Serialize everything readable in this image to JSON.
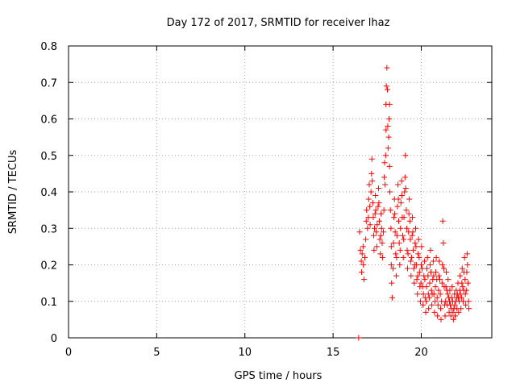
{
  "chart_data": {
    "type": "scatter",
    "title": "Day 172 of 2017, SRMTID for receiver lhaz",
    "xlabel": "GPS time / hours",
    "ylabel": "SRMTID / TECUs",
    "xlim": [
      0,
      24
    ],
    "ylim": [
      0,
      0.8
    ],
    "xticks": [
      0,
      5,
      10,
      15,
      20
    ],
    "yticks": [
      0,
      0.1,
      0.2,
      0.3,
      0.4,
      0.5,
      0.6,
      0.7,
      0.8
    ],
    "xtick_labels": [
      "0",
      "5",
      "10",
      "15",
      "20"
    ],
    "ytick_labels": [
      "0",
      "0.1",
      "0.2",
      "0.3",
      "0.4",
      "0.5",
      "0.6",
      "0.7",
      "0.8"
    ],
    "grid": true,
    "marker": "plus",
    "color": "#ff0000",
    "series": [
      {
        "name": "SRMTID",
        "points": [
          [
            16.45,
            0.0
          ],
          [
            16.5,
            0.29
          ],
          [
            16.55,
            0.24
          ],
          [
            16.6,
            0.21
          ],
          [
            16.62,
            0.18
          ],
          [
            16.65,
            0.23
          ],
          [
            16.7,
            0.25
          ],
          [
            16.72,
            0.2
          ],
          [
            16.75,
            0.16
          ],
          [
            16.8,
            0.22
          ],
          [
            16.85,
            0.27
          ],
          [
            16.88,
            0.32
          ],
          [
            16.9,
            0.35
          ],
          [
            16.95,
            0.3
          ],
          [
            17.0,
            0.33
          ],
          [
            17.02,
            0.38
          ],
          [
            17.05,
            0.42
          ],
          [
            17.08,
            0.36
          ],
          [
            17.1,
            0.31
          ],
          [
            17.15,
            0.4
          ],
          [
            17.18,
            0.45
          ],
          [
            17.2,
            0.49
          ],
          [
            17.22,
            0.43
          ],
          [
            17.25,
            0.37
          ],
          [
            17.28,
            0.33
          ],
          [
            17.3,
            0.28
          ],
          [
            17.32,
            0.24
          ],
          [
            17.35,
            0.3
          ],
          [
            17.38,
            0.34
          ],
          [
            17.4,
            0.39
          ],
          [
            17.42,
            0.35
          ],
          [
            17.45,
            0.29
          ],
          [
            17.48,
            0.25
          ],
          [
            17.5,
            0.31
          ],
          [
            17.55,
            0.36
          ],
          [
            17.58,
            0.41
          ],
          [
            17.6,
            0.37
          ],
          [
            17.62,
            0.32
          ],
          [
            17.65,
            0.27
          ],
          [
            17.68,
            0.23
          ],
          [
            17.7,
            0.28
          ],
          [
            17.72,
            0.34
          ],
          [
            17.75,
            0.3
          ],
          [
            17.78,
            0.26
          ],
          [
            17.8,
            0.22
          ],
          [
            17.85,
            0.29
          ],
          [
            17.88,
            0.35
          ],
          [
            17.9,
            0.44
          ],
          [
            17.92,
            0.48
          ],
          [
            17.95,
            0.42
          ],
          [
            17.98,
            0.5
          ],
          [
            18.0,
            0.57
          ],
          [
            18.0,
            0.64
          ],
          [
            18.02,
            0.69
          ],
          [
            18.05,
            0.74
          ],
          [
            18.08,
            0.68
          ],
          [
            18.1,
            0.58
          ],
          [
            18.12,
            0.52
          ],
          [
            18.15,
            0.55
          ],
          [
            18.18,
            0.6
          ],
          [
            18.2,
            0.64
          ],
          [
            18.2,
            0.47
          ],
          [
            18.22,
            0.4
          ],
          [
            18.25,
            0.35
          ],
          [
            18.28,
            0.3
          ],
          [
            18.3,
            0.25
          ],
          [
            18.3,
            0.2
          ],
          [
            18.32,
            0.15
          ],
          [
            18.35,
            0.11
          ],
          [
            18.4,
            0.19
          ],
          [
            18.42,
            0.26
          ],
          [
            18.45,
            0.33
          ],
          [
            18.48,
            0.38
          ],
          [
            18.5,
            0.34
          ],
          [
            18.52,
            0.29
          ],
          [
            18.55,
            0.23
          ],
          [
            18.58,
            0.17
          ],
          [
            18.6,
            0.22
          ],
          [
            18.62,
            0.28
          ],
          [
            18.65,
            0.36
          ],
          [
            18.68,
            0.42
          ],
          [
            18.7,
            0.38
          ],
          [
            18.72,
            0.32
          ],
          [
            18.75,
            0.26
          ],
          [
            18.78,
            0.2
          ],
          [
            18.8,
            0.24
          ],
          [
            18.82,
            0.3
          ],
          [
            18.85,
            0.37
          ],
          [
            18.88,
            0.43
          ],
          [
            18.9,
            0.39
          ],
          [
            18.92,
            0.33
          ],
          [
            18.95,
            0.28
          ],
          [
            18.98,
            0.22
          ],
          [
            19.0,
            0.27
          ],
          [
            19.02,
            0.33
          ],
          [
            19.05,
            0.4
          ],
          [
            19.08,
            0.44
          ],
          [
            19.1,
            0.5
          ],
          [
            19.12,
            0.41
          ],
          [
            19.15,
            0.35
          ],
          [
            19.18,
            0.3
          ],
          [
            19.2,
            0.24
          ],
          [
            19.22,
            0.19
          ],
          [
            19.25,
            0.23
          ],
          [
            19.28,
            0.29
          ],
          [
            19.3,
            0.34
          ],
          [
            19.32,
            0.38
          ],
          [
            19.35,
            0.32
          ],
          [
            19.38,
            0.27
          ],
          [
            19.4,
            0.21
          ],
          [
            19.42,
            0.17
          ],
          [
            19.45,
            0.22
          ],
          [
            19.48,
            0.28
          ],
          [
            19.5,
            0.33
          ],
          [
            19.52,
            0.29
          ],
          [
            19.55,
            0.24
          ],
          [
            19.58,
            0.19
          ],
          [
            19.6,
            0.15
          ],
          [
            19.62,
            0.2
          ],
          [
            19.65,
            0.26
          ],
          [
            19.68,
            0.3
          ],
          [
            19.7,
            0.25
          ],
          [
            19.72,
            0.2
          ],
          [
            19.75,
            0.16
          ],
          [
            19.78,
            0.12
          ],
          [
            19.8,
            0.17
          ],
          [
            19.82,
            0.23
          ],
          [
            19.85,
            0.27
          ],
          [
            19.88,
            0.22
          ],
          [
            19.9,
            0.18
          ],
          [
            19.92,
            0.14
          ],
          [
            19.95,
            0.1
          ],
          [
            19.98,
            0.15
          ],
          [
            20.0,
            0.2
          ],
          [
            20.02,
            0.25
          ],
          [
            20.05,
            0.19
          ],
          [
            20.08,
            0.14
          ],
          [
            20.1,
            0.09
          ],
          [
            20.12,
            0.12
          ],
          [
            20.15,
            0.17
          ],
          [
            20.18,
            0.21
          ],
          [
            20.2,
            0.16
          ],
          [
            20.22,
            0.11
          ],
          [
            20.25,
            0.07
          ],
          [
            20.28,
            0.1
          ],
          [
            20.3,
            0.14
          ],
          [
            20.32,
            0.19
          ],
          [
            20.35,
            0.22
          ],
          [
            20.38,
            0.17
          ],
          [
            20.4,
            0.12
          ],
          [
            20.42,
            0.08
          ],
          [
            20.45,
            0.11
          ],
          [
            20.48,
            0.15
          ],
          [
            20.5,
            0.2
          ],
          [
            20.52,
            0.24
          ],
          [
            20.55,
            0.18
          ],
          [
            20.58,
            0.13
          ],
          [
            20.6,
            0.09
          ],
          [
            20.62,
            0.12
          ],
          [
            20.65,
            0.16
          ],
          [
            20.68,
            0.21
          ],
          [
            20.7,
            0.17
          ],
          [
            20.72,
            0.12
          ],
          [
            20.75,
            0.07
          ],
          [
            20.78,
            0.1
          ],
          [
            20.8,
            0.14
          ],
          [
            20.82,
            0.18
          ],
          [
            20.85,
            0.22
          ],
          [
            20.88,
            0.16
          ],
          [
            20.9,
            0.11
          ],
          [
            20.92,
            0.06
          ],
          [
            20.95,
            0.09
          ],
          [
            20.98,
            0.13
          ],
          [
            21.0,
            0.17
          ],
          [
            21.02,
            0.21
          ],
          [
            21.05,
            0.16
          ],
          [
            21.08,
            0.12
          ],
          [
            21.1,
            0.08
          ],
          [
            21.12,
            0.05
          ],
          [
            21.15,
            0.1
          ],
          [
            21.18,
            0.15
          ],
          [
            21.2,
            0.2
          ],
          [
            21.22,
            0.32
          ],
          [
            21.25,
            0.26
          ],
          [
            21.28,
            0.19
          ],
          [
            21.3,
            0.14
          ],
          [
            21.32,
            0.09
          ],
          [
            21.35,
            0.06
          ],
          [
            21.38,
            0.1
          ],
          [
            21.4,
            0.14
          ],
          [
            21.42,
            0.18
          ],
          [
            21.45,
            0.13
          ],
          [
            21.48,
            0.09
          ],
          [
            21.5,
            0.12
          ],
          [
            21.52,
            0.16
          ],
          [
            21.55,
            0.11
          ],
          [
            21.58,
            0.07
          ],
          [
            21.6,
            0.1
          ],
          [
            21.62,
            0.13
          ],
          [
            21.65,
            0.09
          ],
          [
            21.68,
            0.06
          ],
          [
            21.7,
            0.08
          ],
          [
            21.72,
            0.11
          ],
          [
            21.75,
            0.14
          ],
          [
            21.78,
            0.1
          ],
          [
            21.8,
            0.07
          ],
          [
            21.82,
            0.05
          ],
          [
            21.85,
            0.08
          ],
          [
            21.88,
            0.12
          ],
          [
            21.9,
            0.09
          ],
          [
            21.92,
            0.06
          ],
          [
            21.95,
            0.1
          ],
          [
            21.98,
            0.13
          ],
          [
            22.0,
            0.11
          ],
          [
            22.02,
            0.08
          ],
          [
            22.05,
            0.12
          ],
          [
            22.08,
            0.15
          ],
          [
            22.1,
            0.11
          ],
          [
            22.12,
            0.07
          ],
          [
            22.15,
            0.1
          ],
          [
            22.18,
            0.13
          ],
          [
            22.2,
            0.17
          ],
          [
            22.22,
            0.12
          ],
          [
            22.25,
            0.08
          ],
          [
            22.28,
            0.11
          ],
          [
            22.3,
            0.15
          ],
          [
            22.32,
            0.19
          ],
          [
            22.35,
            0.14
          ],
          [
            22.38,
            0.1
          ],
          [
            22.4,
            0.13
          ],
          [
            22.42,
            0.18
          ],
          [
            22.45,
            0.22
          ],
          [
            22.48,
            0.16
          ],
          [
            22.5,
            0.12
          ],
          [
            22.52,
            0.09
          ],
          [
            22.55,
            0.13
          ],
          [
            22.58,
            0.18
          ],
          [
            22.6,
            0.23
          ],
          [
            22.62,
            0.2
          ],
          [
            22.65,
            0.15
          ],
          [
            22.68,
            0.1
          ],
          [
            22.7,
            0.08
          ]
        ]
      }
    ]
  }
}
